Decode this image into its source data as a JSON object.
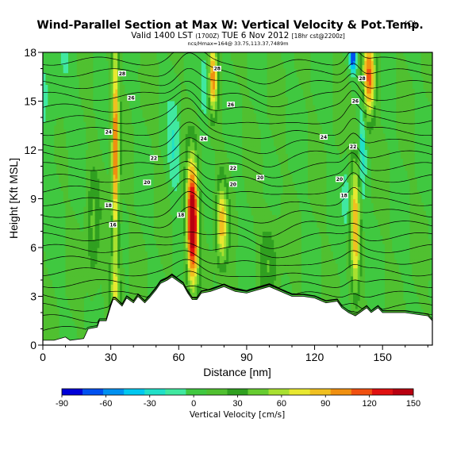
{
  "chart_data": {
    "type": "heatmap",
    "title": "Wind-Parallel Section at Max W: Vertical Velocity & Pot.Temp.",
    "title_mark": "(C)",
    "subtitle_main": "Valid 1400 LST",
    "subtitle_utc": "(1700Z)",
    "subtitle_date": "TUE 6 Nov 2012",
    "subtitle_run": "[18hr cst@2200z]",
    "subtitle_tiny": "ncs/Hmax=164@ 33.75,113.37,7489m",
    "xlabel": "Distance [nm]",
    "ylabel": "Height [Kft MSL]",
    "xlim": [
      0,
      172
    ],
    "ylim": [
      0,
      18
    ],
    "x_ticks": [
      "0",
      "30",
      "60",
      "90",
      "120",
      "150"
    ],
    "y_ticks": [
      "0",
      "3",
      "6",
      "9",
      "12",
      "15",
      "18"
    ],
    "colorbar": {
      "label": "Vertical Velocity [cm/s]",
      "range": [
        -90,
        150
      ],
      "ticks": [
        "-90",
        "-60",
        "-30",
        "0",
        "30",
        "60",
        "90",
        "120",
        "150"
      ],
      "colors": [
        "#0000d8",
        "#0050f0",
        "#0090f0",
        "#00c8f0",
        "#20e0c8",
        "#40e8a0",
        "#40c840",
        "#50c030",
        "#30a020",
        "#66cc30",
        "#a8e030",
        "#e8e830",
        "#f0c020",
        "#f09010",
        "#f05010",
        "#e01010",
        "#b80010"
      ]
    },
    "background_w": 8,
    "terrain": {
      "x": [
        0,
        5,
        10,
        12,
        18,
        20,
        24,
        25,
        28,
        30,
        31,
        32,
        35,
        37,
        40,
        42,
        45,
        47,
        50,
        52,
        55,
        57,
        60,
        62,
        64,
        66,
        68,
        70,
        74,
        80,
        85,
        90,
        95,
        100,
        105,
        110,
        115,
        120,
        125,
        130,
        132,
        135,
        138,
        140,
        143,
        145,
        148,
        150,
        155,
        160,
        165,
        170,
        172
      ],
      "h": [
        0.3,
        0.3,
        0.5,
        0.3,
        0.4,
        1.0,
        1.1,
        1.5,
        1.5,
        2.4,
        2.8,
        2.8,
        2.4,
        2.9,
        2.6,
        3.0,
        2.6,
        2.9,
        3.4,
        3.8,
        4.0,
        4.2,
        3.9,
        3.7,
        3.2,
        2.8,
        2.8,
        3.2,
        3.3,
        3.6,
        3.3,
        3.2,
        3.4,
        3.6,
        3.3,
        3.0,
        3.0,
        2.9,
        2.6,
        2.7,
        2.3,
        2.0,
        1.8,
        2.0,
        2.3,
        2.0,
        2.3,
        2.0,
        2.0,
        2.0,
        1.9,
        1.8,
        1.5
      ]
    },
    "updrafts": [
      {
        "x": 32,
        "z": 12,
        "w": 100,
        "sx": 1.2,
        "sz": 5
      },
      {
        "x": 32,
        "z": 3.5,
        "w": 40,
        "sx": 2,
        "sz": 1.5
      },
      {
        "x": 66,
        "z": 7.5,
        "w": 160,
        "sx": 1.8,
        "sz": 2.6
      },
      {
        "x": 79,
        "z": 7.5,
        "w": 75,
        "sx": 1.8,
        "sz": 1.8
      },
      {
        "x": 75,
        "z": 16.5,
        "w": 90,
        "sx": 1.5,
        "sz": 1.5
      },
      {
        "x": 138,
        "z": 7.5,
        "w": 80,
        "sx": 1.5,
        "sz": 3
      },
      {
        "x": 144,
        "z": 16.5,
        "w": 100,
        "sx": 2,
        "sz": 1.8
      },
      {
        "x": 100,
        "z": 5.5,
        "w": 25,
        "sx": 3,
        "sz": 2
      },
      {
        "x": 22,
        "z": 7,
        "w": 28,
        "sx": 2,
        "sz": 3
      }
    ],
    "downdrafts": [
      {
        "x": 137,
        "z": 17.7,
        "w": -90,
        "sx": 1,
        "sz": 0.6
      },
      {
        "x": 72,
        "z": 16,
        "w": -35,
        "sx": 1.5,
        "sz": 1.5
      },
      {
        "x": 58,
        "z": 12,
        "w": -25,
        "sx": 2,
        "sz": 2
      },
      {
        "x": 141,
        "z": 12,
        "w": -30,
        "sx": 1,
        "sz": 3
      },
      {
        "x": 134,
        "z": 9,
        "w": -25,
        "sx": 1.2,
        "sz": 1.5
      },
      {
        "x": 5,
        "z": 16,
        "w": -10,
        "sx": 8,
        "sz": 3
      }
    ],
    "contour_labels": [
      {
        "x": 35,
        "z": 16.7,
        "text": "28"
      },
      {
        "x": 77,
        "z": 17.0,
        "text": "28"
      },
      {
        "x": 141,
        "z": 16.4,
        "text": "28"
      },
      {
        "x": 39,
        "z": 15.2,
        "text": "26"
      },
      {
        "x": 83,
        "z": 14.8,
        "text": "26"
      },
      {
        "x": 138,
        "z": 15.0,
        "text": "26"
      },
      {
        "x": 29,
        "z": 13.1,
        "text": "24"
      },
      {
        "x": 71,
        "z": 12.7,
        "text": "24"
      },
      {
        "x": 124,
        "z": 12.8,
        "text": "24"
      },
      {
        "x": 49,
        "z": 11.5,
        "text": "22"
      },
      {
        "x": 84,
        "z": 10.9,
        "text": "22"
      },
      {
        "x": 137,
        "z": 12.2,
        "text": "22"
      },
      {
        "x": 46,
        "z": 10.0,
        "text": "20"
      },
      {
        "x": 84,
        "z": 9.9,
        "text": "20"
      },
      {
        "x": 96,
        "z": 10.3,
        "text": "20"
      },
      {
        "x": 131,
        "z": 10.2,
        "text": "20"
      },
      {
        "x": 29,
        "z": 8.6,
        "text": "18"
      },
      {
        "x": 61,
        "z": 8.0,
        "text": "18"
      },
      {
        "x": 133,
        "z": 9.2,
        "text": "18"
      },
      {
        "x": 31,
        "z": 7.4,
        "text": "16"
      }
    ]
  }
}
